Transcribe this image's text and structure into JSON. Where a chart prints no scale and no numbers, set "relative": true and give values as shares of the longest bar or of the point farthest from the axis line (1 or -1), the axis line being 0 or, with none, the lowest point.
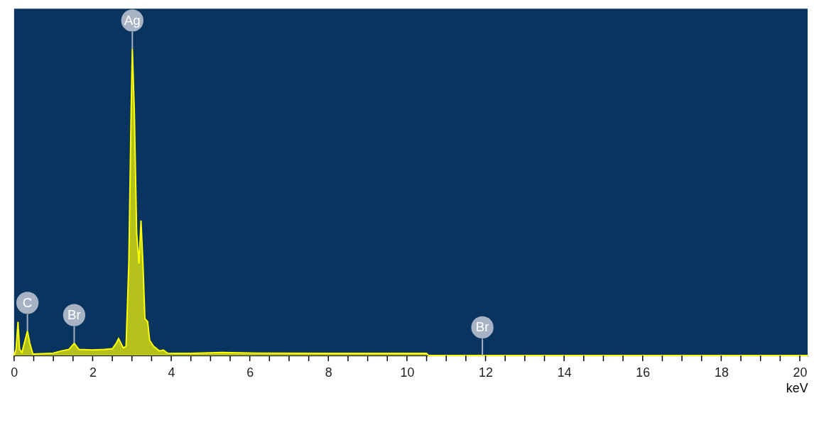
{
  "chart_data": {
    "type": "area",
    "relative": true,
    "xlabel": "keV",
    "x": [
      0.0,
      0.05,
      0.1,
      0.14,
      0.2,
      0.28,
      0.34,
      0.4,
      0.48,
      0.7,
      1.0,
      1.2,
      1.4,
      1.53,
      1.65,
      2.0,
      2.3,
      2.5,
      2.6,
      2.66,
      2.72,
      2.78,
      2.85,
      2.92,
      2.98,
      3.01,
      3.06,
      3.12,
      3.18,
      3.23,
      3.28,
      3.33,
      3.4,
      3.45,
      3.55,
      3.7,
      3.8,
      3.9,
      4.5,
      5.3,
      6.2,
      8.0,
      10.5,
      10.55,
      20.2
    ],
    "series": [
      {
        "color": "#ffff00",
        "values": [
          0,
          0.02,
          0.11,
          0.02,
          0.01,
          0.05,
          0.08,
          0.04,
          0.005,
          0.006,
          0.008,
          0.015,
          0.02,
          0.04,
          0.02,
          0.018,
          0.02,
          0.022,
          0.04,
          0.055,
          0.04,
          0.025,
          0.03,
          0.3,
          0.8,
          1,
          0.8,
          0.4,
          0.3,
          0.44,
          0.3,
          0.12,
          0.11,
          0.05,
          0.03,
          0.015,
          0.018,
          0.008,
          0.007,
          0.01,
          0.008,
          0.007,
          0.007,
          0,
          0
        ]
      }
    ],
    "xlim": [
      0,
      20.2
    ],
    "xticks": [
      0,
      {
        "value": 0.5,
        "label": null
      },
      {
        "value": 1,
        "label": null
      },
      {
        "value": 1.5,
        "label": null
      },
      2,
      {
        "value": 2.5,
        "label": null
      },
      {
        "value": 3,
        "label": null
      },
      {
        "value": 3.5,
        "label": null
      },
      4,
      {
        "value": 4.5,
        "label": null
      },
      {
        "value": 5,
        "label": null
      },
      {
        "value": 5.5,
        "label": null
      },
      6,
      {
        "value": 6.5,
        "label": null
      },
      {
        "value": 7,
        "label": null
      },
      {
        "value": 7.5,
        "label": null
      },
      8,
      {
        "value": 8.5,
        "label": null
      },
      {
        "value": 9,
        "label": null
      },
      {
        "value": 9.5,
        "label": null
      },
      10,
      {
        "value": 10.5,
        "label": null
      },
      {
        "value": 11,
        "label": null
      },
      {
        "value": 11.5,
        "label": null
      },
      12,
      {
        "value": 12.5,
        "label": null
      },
      {
        "value": 13,
        "label": null
      },
      {
        "value": 13.5,
        "label": null
      },
      14,
      {
        "value": 14.5,
        "label": null
      },
      {
        "value": 15,
        "label": null
      },
      {
        "value": 15.5,
        "label": null
      },
      16,
      {
        "value": 16.5,
        "label": null
      },
      {
        "value": 17,
        "label": null
      },
      {
        "value": 17.5,
        "label": null
      },
      18,
      {
        "value": 18.5,
        "label": null
      },
      {
        "value": 19,
        "label": null
      },
      {
        "value": 19.5,
        "label": null
      },
      20
    ],
    "grid": false,
    "annotations": [
      {
        "text": "C",
        "x": 0.34,
        "y": 0.08
      },
      {
        "text": "Br",
        "x": 1.53,
        "y": 0.04
      },
      {
        "text": "Ag",
        "x": 3.01,
        "y": 1
      },
      {
        "text": "Br",
        "x": 11.92,
        "y": 0
      }
    ]
  }
}
